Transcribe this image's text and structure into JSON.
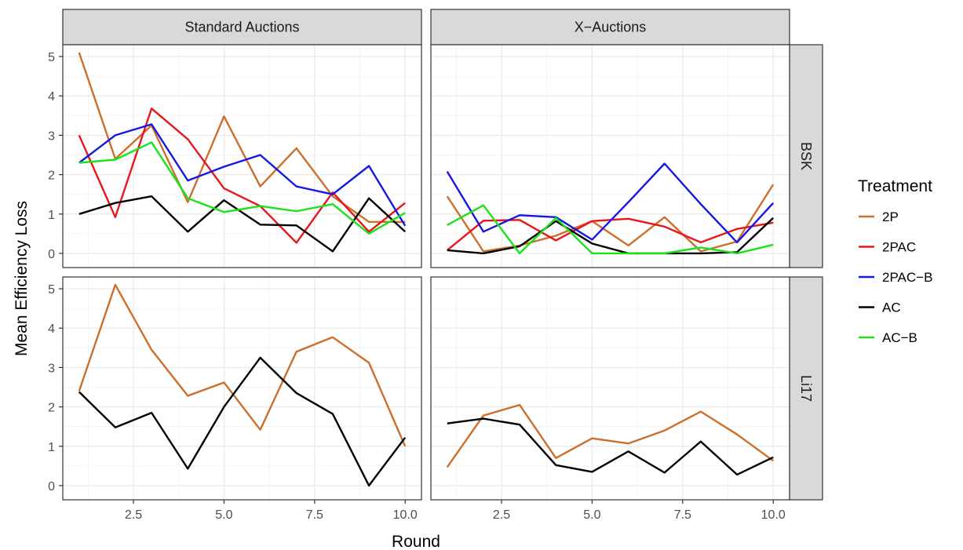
{
  "chart_data": {
    "type": "line",
    "xlabel": "Round",
    "ylabel": "Mean Efficiency Loss",
    "xlim": [
      0.55,
      10.45
    ],
    "ylim": [
      -0.36,
      5.3
    ],
    "x_ticks": [
      2.5,
      5.0,
      7.5,
      10.0
    ],
    "x_tick_labels": [
      "2.5",
      "5.0",
      "7.5",
      "10.0"
    ],
    "y_ticks": [
      0,
      1,
      2,
      3,
      4,
      5
    ],
    "y_tick_labels": [
      "0",
      "1",
      "2",
      "3",
      "4",
      "5"
    ],
    "grid": true,
    "legend": {
      "title": "Treatment",
      "position": "right",
      "entries": [
        {
          "name": "2P",
          "color": "#CC6F2A"
        },
        {
          "name": "2PAC",
          "color": "#E8161B"
        },
        {
          "name": "2PAC−B",
          "color": "#1616E6"
        },
        {
          "name": "AC",
          "color": "#000000"
        },
        {
          "name": "AC−B",
          "color": "#1AE31A"
        }
      ]
    },
    "facet_columns": [
      "Standard Auctions",
      "X−Auctions"
    ],
    "facet_rows": [
      "BSK",
      "Li17"
    ],
    "x": [
      1,
      2,
      3,
      4,
      5,
      6,
      7,
      8,
      9,
      10
    ],
    "panels": [
      {
        "column": "Standard Auctions",
        "row": "BSK",
        "series": [
          {
            "name": "2P",
            "values": [
              5.1,
              2.4,
              3.25,
              1.3,
              3.48,
              1.7,
              2.67,
              1.45,
              0.8,
              0.8
            ]
          },
          {
            "name": "2PAC",
            "values": [
              3.0,
              0.92,
              3.68,
              2.9,
              1.65,
              1.2,
              0.27,
              1.55,
              0.55,
              1.28
            ]
          },
          {
            "name": "2PAC−B",
            "values": [
              2.3,
              3.0,
              3.28,
              1.85,
              2.2,
              2.5,
              1.7,
              1.5,
              2.22,
              0.7
            ]
          },
          {
            "name": "AC",
            "values": [
              1.0,
              1.28,
              1.45,
              0.55,
              1.35,
              0.73,
              0.71,
              0.05,
              1.4,
              0.55
            ]
          },
          {
            "name": "AC−B",
            "values": [
              2.3,
              2.38,
              2.82,
              1.4,
              1.05,
              1.2,
              1.07,
              1.25,
              0.5,
              1.03
            ]
          }
        ]
      },
      {
        "column": "X−Auctions",
        "row": "BSK",
        "series": [
          {
            "name": "2P",
            "values": [
              1.45,
              0.05,
              0.2,
              0.45,
              0.82,
              0.2,
              0.92,
              0.05,
              0.3,
              1.75
            ]
          },
          {
            "name": "2PAC",
            "values": [
              0.08,
              0.83,
              0.85,
              0.33,
              0.82,
              0.88,
              0.68,
              0.28,
              0.62,
              0.78
            ]
          },
          {
            "name": "2PAC−B",
            "values": [
              2.08,
              0.55,
              0.97,
              0.92,
              0.35,
              1.3,
              2.28,
              1.25,
              0.28,
              1.28
            ]
          },
          {
            "name": "AC",
            "values": [
              0.08,
              0.0,
              0.18,
              0.82,
              0.25,
              0.0,
              0.0,
              0.0,
              0.03,
              0.9
            ]
          },
          {
            "name": "AC−B",
            "values": [
              0.72,
              1.22,
              0.0,
              0.9,
              0.0,
              0.0,
              0.0,
              0.15,
              0.0,
              0.22
            ]
          }
        ]
      },
      {
        "column": "Standard Auctions",
        "row": "Li17",
        "series": [
          {
            "name": "2P",
            "values": [
              2.4,
              5.1,
              3.45,
              2.28,
              2.62,
              1.42,
              3.4,
              3.77,
              3.12,
              1.0
            ]
          },
          {
            "name": "AC",
            "values": [
              2.38,
              1.48,
              1.85,
              0.43,
              2.0,
              3.25,
              2.35,
              1.82,
              0.0,
              1.22
            ]
          }
        ]
      },
      {
        "column": "X−Auctions",
        "row": "Li17",
        "series": [
          {
            "name": "2P",
            "values": [
              0.47,
              1.78,
              2.05,
              0.7,
              1.2,
              1.07,
              1.4,
              1.88,
              1.3,
              0.63
            ]
          },
          {
            "name": "AC",
            "values": [
              1.58,
              1.7,
              1.55,
              0.52,
              0.35,
              0.87,
              0.33,
              1.12,
              0.28,
              0.72
            ]
          }
        ]
      }
    ]
  }
}
